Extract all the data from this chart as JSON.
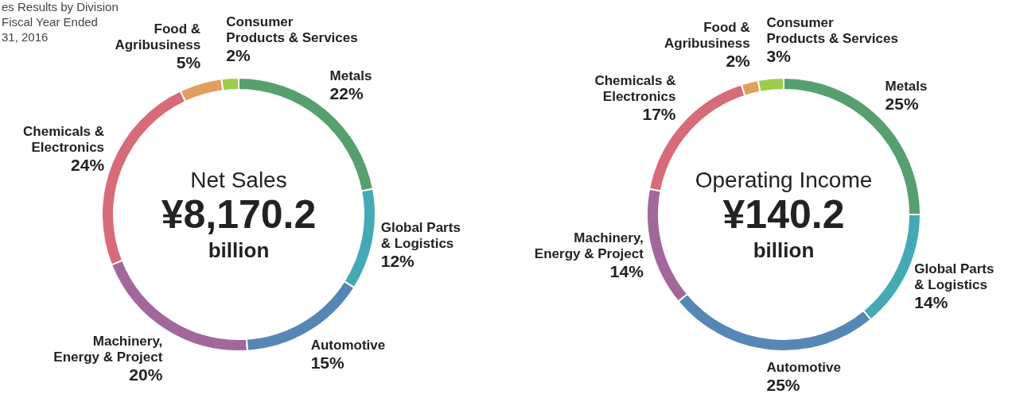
{
  "chart_data": [
    {
      "type": "donut",
      "subtitle": "es Results by Division\nFiscal Year Ended\n31, 2016",
      "annotations": [
        "Net Sales",
        "¥8,170.2",
        "billion"
      ],
      "categories": [
        "Metals",
        "Global Parts\n& Logistics",
        "Automotive",
        "Machinery,\nEnergy & Project",
        "Chemicals &\nElectronics",
        "Food &\nAgribusiness",
        "Consumer\nProducts & Services"
      ],
      "values": [
        22,
        12,
        15,
        20,
        24,
        5,
        2
      ],
      "value_labels": [
        "22%",
        "12%",
        "15%",
        "20%",
        "24%",
        "5%",
        "2%"
      ],
      "colors": [
        "#56a06e",
        "#45aab5",
        "#5687b4",
        "#a2689c",
        "#d86b78",
        "#dfa05e",
        "#9ccc4d"
      ]
    },
    {
      "type": "donut",
      "annotations": [
        "Operating Income",
        "¥140.2",
        "billion"
      ],
      "categories": [
        "Metals",
        "Global Parts\n& Logistics",
        "Automotive",
        "Machinery,\nEnergy & Project",
        "Chemicals &\nElectronics",
        "Food &\nAgribusiness",
        "Consumer\nProducts & Services"
      ],
      "values": [
        25,
        14,
        25,
        14,
        17,
        2,
        3
      ],
      "value_labels": [
        "25%",
        "14%",
        "25%",
        "14%",
        "17%",
        "2%",
        "3%"
      ],
      "colors": [
        "#56a06e",
        "#45aab5",
        "#5687b4",
        "#a2689c",
        "#d86b78",
        "#dfa05e",
        "#9ccc4d"
      ]
    }
  ]
}
